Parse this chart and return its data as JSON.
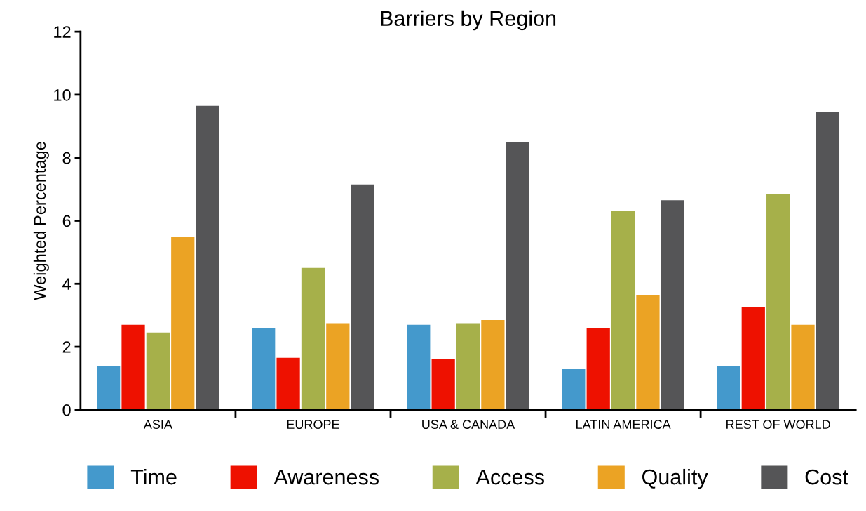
{
  "chart_data": {
    "type": "bar",
    "title": "Barriers by Region",
    "ylabel": "Weighted Percentage",
    "categories": [
      "ASIA",
      "EUROPE",
      "USA & CANADA",
      "LATIN AMERICA",
      "REST OF WORLD"
    ],
    "series": [
      {
        "name": "Time",
        "color": "#4499cc",
        "values": [
          1.4,
          2.6,
          2.7,
          1.3,
          1.4
        ]
      },
      {
        "name": "Awareness",
        "color": "#ee1100",
        "values": [
          2.7,
          1.65,
          1.6,
          2.6,
          3.25
        ]
      },
      {
        "name": "Access",
        "color": "#a6b04a",
        "values": [
          2.45,
          4.5,
          2.75,
          6.3,
          6.85
        ]
      },
      {
        "name": "Quality",
        "color": "#eba324",
        "values": [
          5.5,
          2.75,
          2.85,
          3.65,
          2.7
        ]
      },
      {
        "name": "Cost",
        "color": "#555557",
        "values": [
          9.65,
          7.15,
          8.5,
          6.65,
          9.45
        ]
      }
    ],
    "ylim": [
      0,
      12
    ],
    "yticks": [
      0,
      2,
      4,
      6,
      8,
      10,
      12
    ],
    "grid": false,
    "legend": "bottom"
  }
}
